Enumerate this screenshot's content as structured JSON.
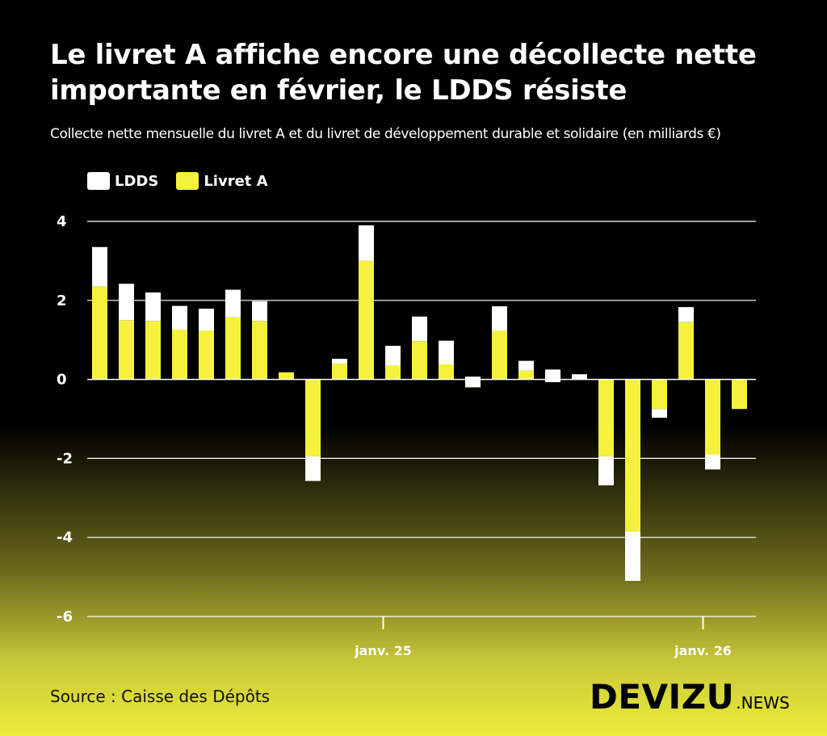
{
  "colors": {
    "ldds": "#ffffff",
    "livret_a": "#f4f23c",
    "grid": "#ffffff",
    "text": "#ffffff"
  },
  "title": "Le livret A affiche encore une décollecte nette importante en février, le LDDS résiste",
  "subtitle": "Collecte nette mensuelle du livret A et du livret de développement durable et solidaire (en milliards €)",
  "legend": [
    {
      "label": "LDDS",
      "color": "#ffffff"
    },
    {
      "label": "Livret A",
      "color": "#f4f23c"
    }
  ],
  "source": "Source : Caisse des Dépôts",
  "logo": {
    "main": "DEVIZU",
    "sub": ".NEWS"
  },
  "chart_data": {
    "type": "bar",
    "stacked": true,
    "ylim": [
      -6,
      4
    ],
    "yticks": [
      4,
      2,
      0,
      -2,
      -4,
      -6
    ],
    "xtick_labels": [
      "janv. 25",
      "janv. 26"
    ],
    "xtick_category_index": [
      11,
      23
    ],
    "grid": true,
    "legend_position": "top-left",
    "series": [
      {
        "name": "Livret A",
        "values": [
          2.35,
          1.5,
          1.48,
          1.26,
          1.23,
          1.57,
          1.48,
          0.18,
          -1.95,
          0.4,
          3.0,
          0.35,
          0.97,
          0.38,
          -0.2,
          1.23,
          0.22,
          -0.07,
          0.0,
          -1.95,
          -3.85,
          -0.75,
          1.45,
          -1.9,
          -0.75
        ]
      },
      {
        "name": "LDDS",
        "values": [
          1.0,
          0.92,
          0.72,
          0.6,
          0.56,
          0.7,
          0.5,
          0.0,
          -0.62,
          0.12,
          0.9,
          0.5,
          0.62,
          0.6,
          0.27,
          0.62,
          0.25,
          0.32,
          0.13,
          -0.73,
          -1.25,
          -0.22,
          0.38,
          -0.38,
          0.0
        ]
      }
    ]
  }
}
